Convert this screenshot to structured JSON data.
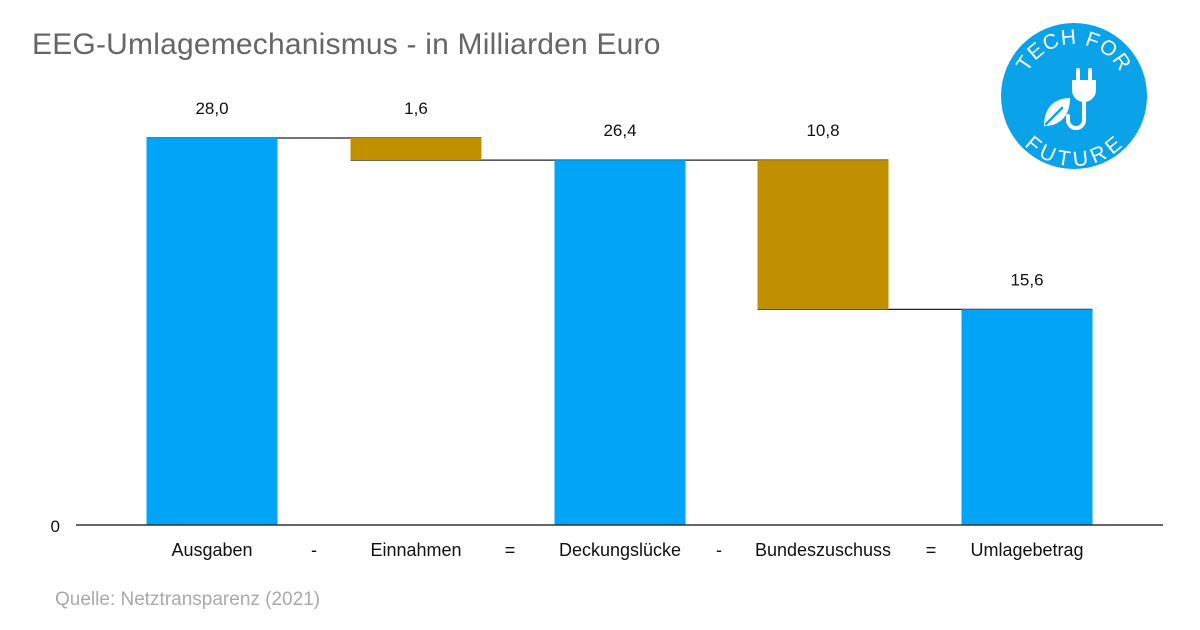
{
  "title": "EEG-Umlagemechanismus - in Milliarden Euro",
  "source": "Quelle: Netztransparenz (2021)",
  "logo": {
    "top_text": "TECH FOR",
    "bottom_text": "FUTURE",
    "color": "#0aa3ea",
    "icons": [
      "plug-icon",
      "leaf-icon"
    ]
  },
  "colors": {
    "total": "#02a4f7",
    "delta": "#c09000",
    "axis": "#333333",
    "connector": "#222222"
  },
  "chart_data": {
    "type": "bar",
    "subtype": "waterfall",
    "title": "EEG-Umlagemechanismus - in Milliarden Euro",
    "categories": [
      "Ausgaben",
      "Einnahmen",
      "Deckungslücke",
      "Bundeszuschuss",
      "Umlagebetrag"
    ],
    "operators": [
      "-",
      "=",
      "-",
      "="
    ],
    "values": [
      28.0,
      1.6,
      26.4,
      10.8,
      15.6
    ],
    "value_labels": [
      "28,0",
      "1,6",
      "26,4",
      "10,8",
      "15,6"
    ],
    "bar_kind": [
      "total",
      "decrease",
      "total",
      "decrease",
      "total"
    ],
    "y_tick_labels": [
      "0"
    ],
    "ylim": [
      0,
      28
    ]
  }
}
